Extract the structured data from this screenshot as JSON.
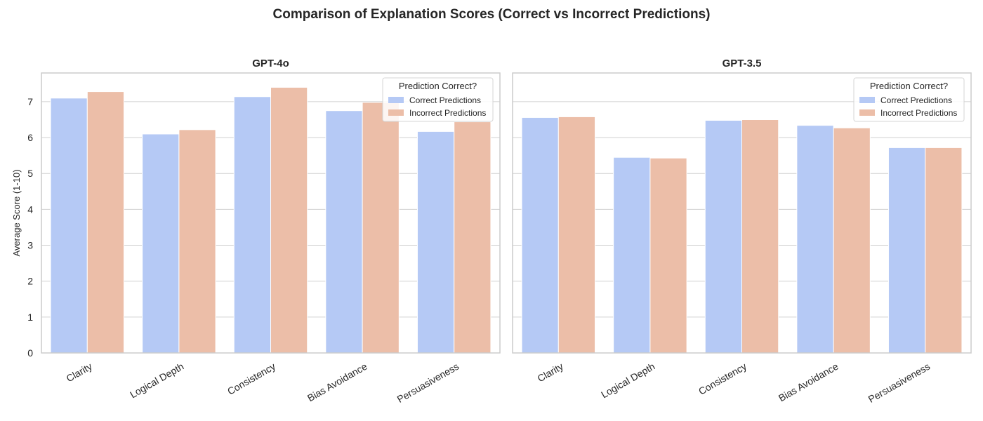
{
  "title": "Comparison of Explanation Scores (Correct vs Incorrect Predictions)",
  "colors": {
    "correct": "#b5c9f5",
    "incorrect": "#ecbea8",
    "grid": "#d0d0d0",
    "frame": "#cccccc"
  },
  "chart_data": [
    {
      "type": "bar",
      "title": "GPT-4o",
      "ylabel": "Average Score (1-10)",
      "xlabel": "",
      "ylim": [
        0,
        7.8
      ],
      "yticks": [
        0,
        1,
        2,
        3,
        4,
        5,
        6,
        7
      ],
      "grid": true,
      "legend_position": "top-right",
      "legend_title": "Prediction Correct?",
      "categories": [
        "Clarity",
        "Logical Depth",
        "Consistency",
        "Bias Avoidance",
        "Persuasiveness"
      ],
      "series": [
        {
          "name": "Correct Predictions",
          "values": [
            7.1,
            6.1,
            7.14,
            6.75,
            6.17
          ]
        },
        {
          "name": "Incorrect Predictions",
          "values": [
            7.28,
            6.22,
            7.4,
            6.98,
            6.44
          ]
        }
      ]
    },
    {
      "type": "bar",
      "title": "GPT-3.5",
      "ylabel": "",
      "xlabel": "",
      "ylim": [
        0,
        7.8
      ],
      "yticks": [
        0,
        1,
        2,
        3,
        4,
        5,
        6,
        7
      ],
      "grid": true,
      "legend_position": "top-right",
      "legend_title": "Prediction Correct?",
      "categories": [
        "Clarity",
        "Logical Depth",
        "Consistency",
        "Bias Avoidance",
        "Persuasiveness"
      ],
      "series": [
        {
          "name": "Correct Predictions",
          "values": [
            6.56,
            5.45,
            6.48,
            6.34,
            5.72
          ]
        },
        {
          "name": "Incorrect Predictions",
          "values": [
            6.58,
            5.43,
            6.5,
            6.27,
            5.72
          ]
        }
      ]
    }
  ]
}
